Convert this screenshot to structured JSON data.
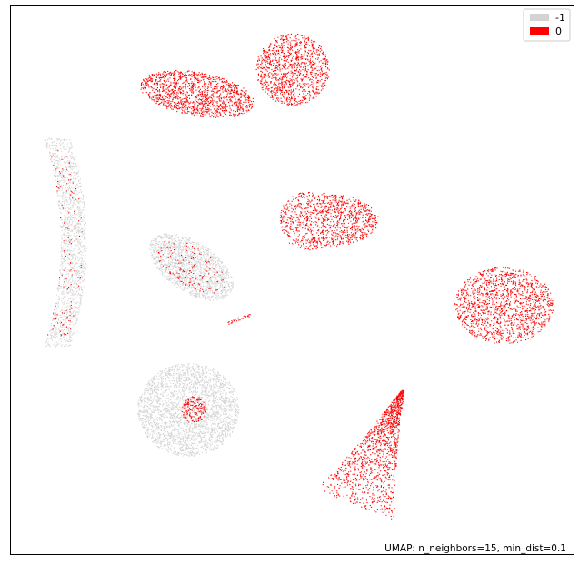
{
  "chart_data": {
    "type": "scatter",
    "title": "",
    "xlabel": "",
    "ylabel": "",
    "xlim": [
      0,
      100
    ],
    "ylim": [
      0,
      100
    ],
    "grid": false,
    "axes_ticks": false,
    "legend_placement": "top-right",
    "annotation": "UMAP: n_neighbors=15, min_dist=0.1",
    "series": [
      {
        "name": "-1",
        "color": "#d3d3d3",
        "clusters": [
          {
            "shape": "crescent-left",
            "center": [
              9.5,
              57
            ],
            "extent": [
              6,
              19
            ],
            "density": 1400
          },
          {
            "shape": "ellipse",
            "center": [
              32,
              52.5
            ],
            "extent": [
              17,
              9
            ],
            "rotation": -35,
            "density": 1500
          },
          {
            "shape": "disc",
            "center": [
              31.5,
              26.5
            ],
            "extent": [
              18,
              17
            ],
            "density": 2600
          }
        ]
      },
      {
        "name": "0",
        "color": "#ff0000",
        "clusters": [
          {
            "shape": "ellipse",
            "center": [
              33,
              84
            ],
            "extent": [
              20.5,
              8
            ],
            "rotation": -10,
            "density": 1300
          },
          {
            "shape": "ellipse",
            "center": [
              50,
              88.5
            ],
            "extent": [
              13,
              13
            ],
            "rotation": 20,
            "density": 1100
          },
          {
            "shape": "blob",
            "center": [
              56.5,
              61
            ],
            "extent": [
              17.5,
              9.5
            ],
            "density": 1100
          },
          {
            "shape": "ellipse",
            "center": [
              87.5,
              45.5
            ],
            "extent": [
              17.5,
              14
            ],
            "density": 1400
          },
          {
            "shape": "teardrop",
            "center": [
              64.5,
              17.5
            ],
            "extent": [
              12.5,
              22.5
            ],
            "rotation": -22,
            "density": 1300
          },
          {
            "shape": "sparse-ellipse",
            "center": [
              32,
              52.5
            ],
            "extent": [
              14,
              7
            ],
            "rotation": -35,
            "density": 140
          },
          {
            "shape": "sparse-crescent",
            "center": [
              9.5,
              57
            ],
            "extent": [
              5,
              17
            ],
            "density": 130
          },
          {
            "shape": "core",
            "center": [
              32.5,
              26.5
            ],
            "extent": [
              4.5,
              5
            ],
            "density": 170
          },
          {
            "shape": "streak",
            "center": [
              40.5,
              43
            ],
            "extent": [
              2,
              1
            ],
            "density": 30
          }
        ]
      }
    ]
  }
}
